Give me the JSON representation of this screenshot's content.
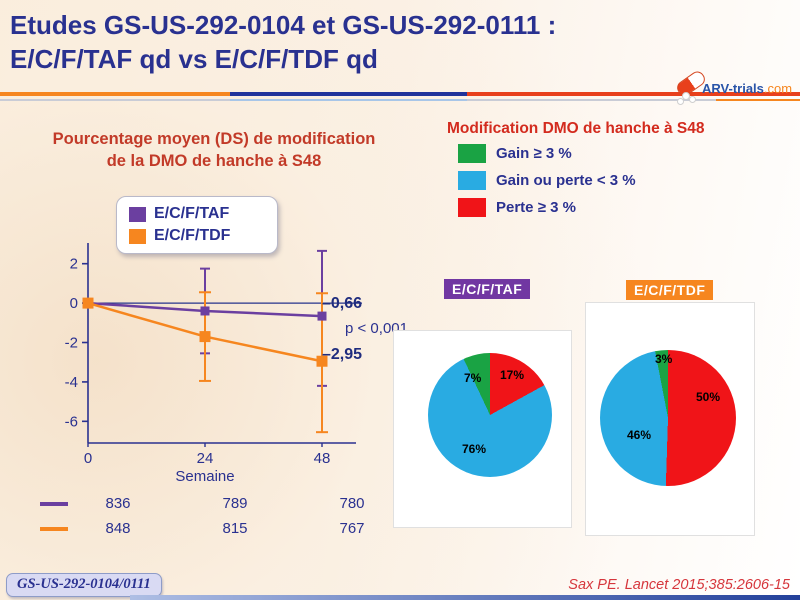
{
  "slide": {
    "title_line1": "Etudes GS-US-292-0104 et GS-US-292-0111 :",
    "title_line2": "E/C/F/TAF qd vs E/C/F/TDF qd",
    "logo": {
      "text_main": "ARV-trials",
      "text_suffix": ".com"
    },
    "footer_badge": "GS-US-292-0104/0111",
    "reference": "Sax PE. Lancet 2015;385:2606-15",
    "accent_colors": {
      "title_navy": "#293190",
      "heading_red": "#C23A28",
      "rule_orange": "#F6861F",
      "rule_navy": "#20339B",
      "rule_red": "#E8401C"
    }
  },
  "left_panel": {
    "heading_line1": "Pourcentage moyen (DS) de modification",
    "heading_line2": "de la DMO de hanche à S48"
  },
  "right_panel": {
    "heading": "Modification DMO de hanche à S48",
    "legend": [
      {
        "label": "Gain ≥ 3 %",
        "color": "#1AA344"
      },
      {
        "label": "Gain ou perte < 3 %",
        "color": "#29ABE2"
      },
      {
        "label": "Perte ≥ 3 %",
        "color": "#F01418"
      }
    ]
  },
  "chart_data": [
    {
      "type": "line",
      "title": "Pourcentage moyen (DS) de modification de la DMO de hanche à S48",
      "xlabel": "Semaine",
      "ylabel": "",
      "x": [
        0,
        24,
        48
      ],
      "xticks": [
        0,
        24,
        48
      ],
      "yticks": [
        2,
        0,
        -2,
        -4,
        -6
      ],
      "ylim": [
        -7.1,
        3.05
      ],
      "grid": false,
      "legend_position": "top",
      "p_value": "p < 0,001",
      "series": [
        {
          "name": "E/C/F/TAF",
          "color": "#6B3FA0",
          "values": [
            0,
            -0.4,
            -0.66
          ],
          "err_high": [
            0,
            1.75,
            2.65
          ],
          "err_low": [
            0,
            -2.55,
            -4.2
          ],
          "end_label": "–0,66",
          "n_at_risk": [
            836,
            789,
            780
          ]
        },
        {
          "name": "E/C/F/TDF",
          "color": "#F6861F",
          "values": [
            0,
            -1.7,
            -2.95
          ],
          "err_high": [
            0,
            0.55,
            0.5
          ],
          "err_low": [
            0,
            -3.95,
            -6.55
          ],
          "end_label": "–2,95",
          "n_at_risk": [
            848,
            815,
            767
          ]
        }
      ]
    },
    {
      "type": "pie",
      "title": "E/C/F/TAF",
      "badge_color": "#7137A2",
      "slices": [
        {
          "name": "Perte ≥ 3 %",
          "value": 17,
          "display": "17%",
          "color": "#F01418"
        },
        {
          "name": "Gain ou perte < 3 %",
          "value": 76,
          "display": "76%",
          "color": "#29ABE2"
        },
        {
          "name": "Gain ≥ 3 %",
          "value": 7,
          "display": "7%",
          "color": "#1AA344"
        }
      ]
    },
    {
      "type": "pie",
      "title": "E/C/F/TDF",
      "badge_color": "#F6861F",
      "slices": [
        {
          "name": "Perte ≥ 3 %",
          "value": 50,
          "display": "50%",
          "color": "#F01418"
        },
        {
          "name": "Gain ou perte < 3 %",
          "value": 46,
          "display": "46%",
          "color": "#29ABE2"
        },
        {
          "name": "Gain ≥ 3 %",
          "value": 3,
          "display": "3%",
          "color": "#1AA344"
        }
      ]
    }
  ]
}
